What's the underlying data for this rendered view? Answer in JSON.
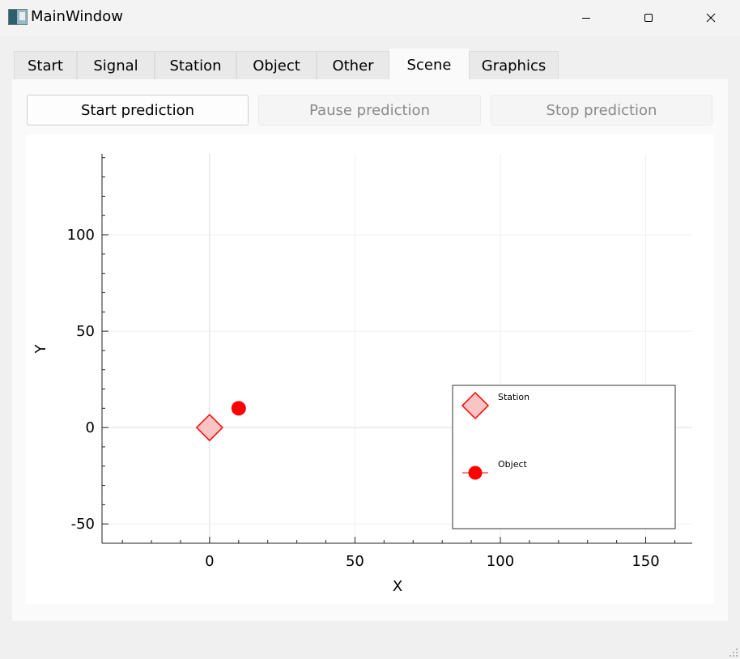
{
  "window": {
    "title": "MainWindow",
    "minimize_icon": "minimize-icon",
    "maximize_icon": "maximize-icon",
    "close_icon": "close-icon"
  },
  "tabs": [
    {
      "label": "Start",
      "active": false
    },
    {
      "label": "Signal",
      "active": false
    },
    {
      "label": "Station",
      "active": false
    },
    {
      "label": "Object",
      "active": false
    },
    {
      "label": "Other",
      "active": false
    },
    {
      "label": "Scene",
      "active": true
    },
    {
      "label": "Graphics",
      "active": false
    }
  ],
  "controls": {
    "start_label": "Start prediction",
    "pause_label": "Pause prediction",
    "stop_label": "Stop prediction",
    "start_enabled": true,
    "pause_enabled": false,
    "stop_enabled": false
  },
  "chart_data": {
    "type": "scatter",
    "xlabel": "X",
    "ylabel": "Y",
    "xlim": [
      -37,
      166
    ],
    "ylim": [
      -60,
      142
    ],
    "xticks": [
      0,
      50,
      100,
      150
    ],
    "yticks": [
      -50,
      0,
      50,
      100
    ],
    "grid": true,
    "legend": "bottom-right",
    "series": [
      {
        "name": "Station",
        "marker": "diamond",
        "color": "#ff0000",
        "fill": "#f9c4c4",
        "points": [
          [
            0,
            0
          ]
        ]
      },
      {
        "name": "Object",
        "marker": "circle",
        "color": "#ff0000",
        "fill": "#ff0000",
        "points": [
          [
            10,
            10
          ]
        ]
      }
    ]
  }
}
